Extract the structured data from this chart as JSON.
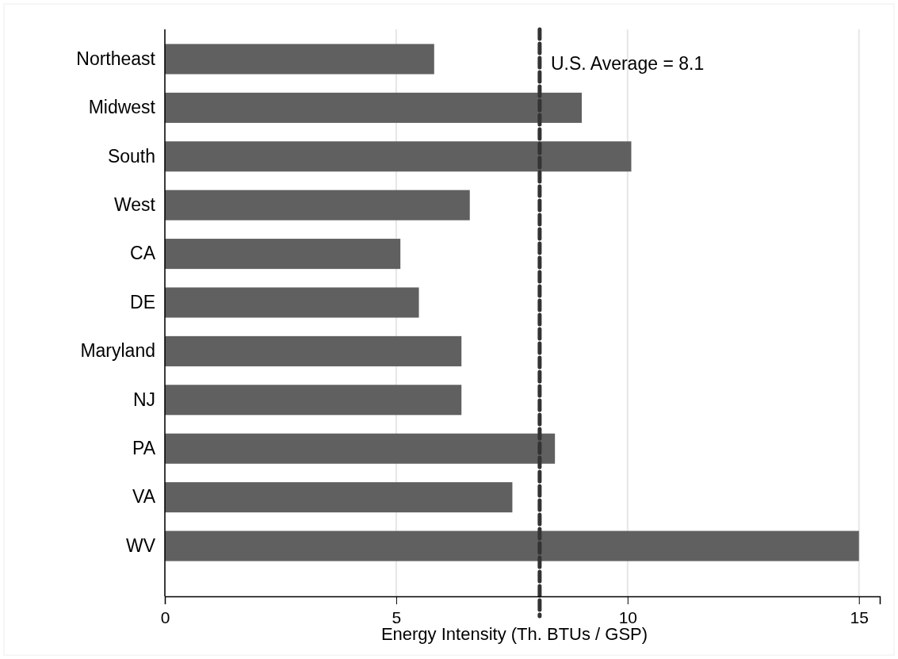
{
  "chart_data": {
    "type": "bar",
    "orientation": "horizontal",
    "xlabel": "Energy Intensity (Th. BTUs / GSP)",
    "categories": [
      "Northeast",
      "Midwest",
      "South",
      "West",
      "CA",
      "DE",
      "Maryland",
      "NJ",
      "PA",
      "VA",
      "WV"
    ],
    "values": [
      5.82,
      9.01,
      10.08,
      6.59,
      5.09,
      5.49,
      6.41,
      6.41,
      8.43,
      7.51,
      15.0
    ],
    "color": "#606060",
    "xlim": [
      0,
      15.45
    ],
    "xticks": [
      0,
      5,
      10,
      15
    ],
    "grid": "x",
    "ref_lines": [
      {
        "axis": "x",
        "value": 8.1,
        "label": "U.S. Average = 8.1",
        "color": "#333333",
        "line_style": "dashed"
      }
    ]
  }
}
